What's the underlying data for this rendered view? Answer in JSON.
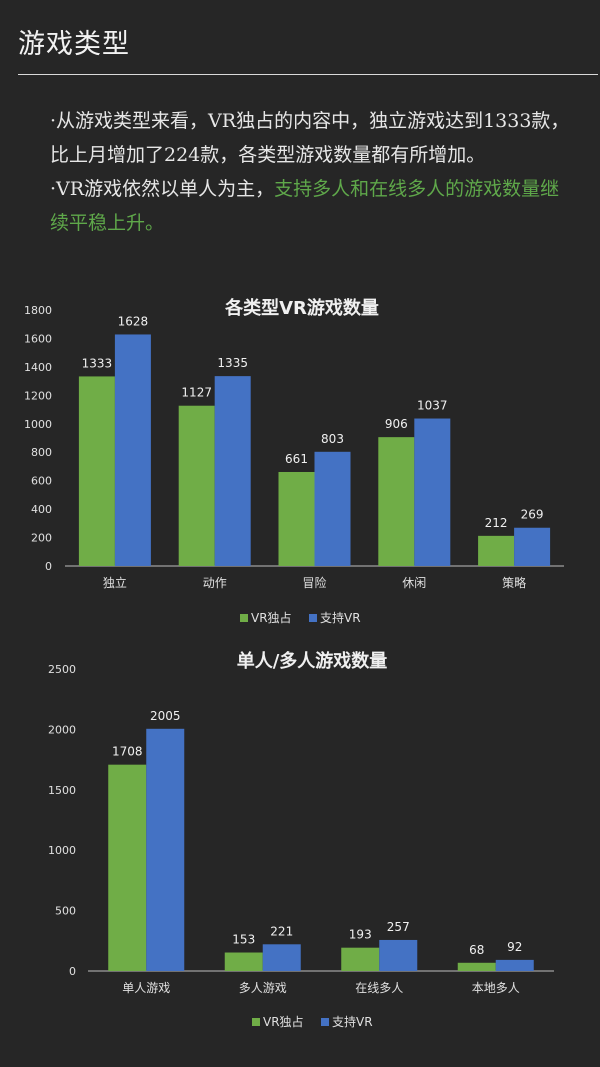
{
  "header": {
    "title": "游戏类型"
  },
  "intro": {
    "p1": "·从游戏类型来看，VR独占的内容中，独立游戏达到1333款，比上月增加了224款，各类型游戏数量都有所增加。",
    "p2_plain": "·VR游戏依然以单人为主，",
    "p2_highlight": "支持多人和在线多人的游戏数量继续平稳上升。"
  },
  "chart_data": [
    {
      "type": "bar",
      "title": "各类型VR游戏数量",
      "categories": [
        "独立",
        "动作",
        "冒险",
        "休闲",
        "策略"
      ],
      "series": [
        {
          "name": "VR独占",
          "values": [
            1333,
            1127,
            661,
            906,
            212
          ],
          "color": "#70ad47"
        },
        {
          "name": "支持VR",
          "values": [
            1628,
            1335,
            803,
            1037,
            269
          ],
          "color": "#4472c4"
        }
      ],
      "ylim": [
        0,
        1800
      ],
      "yticks": [
        0,
        200,
        400,
        600,
        800,
        1000,
        1200,
        1400,
        1600,
        1800
      ],
      "legend": "bottom",
      "grid": false
    },
    {
      "type": "bar",
      "title": "单人/多人游戏数量",
      "categories": [
        "单人游戏",
        "多人游戏",
        "在线多人",
        "本地多人"
      ],
      "series": [
        {
          "name": "VR独占",
          "values": [
            1708,
            153,
            193,
            68
          ],
          "color": "#70ad47"
        },
        {
          "name": "支持VR",
          "values": [
            2005,
            221,
            257,
            92
          ],
          "color": "#4472c4"
        }
      ],
      "ylim": [
        0,
        2500
      ],
      "yticks": [
        0,
        500,
        1000,
        1500,
        2000,
        2500
      ],
      "legend": "bottom",
      "grid": false
    }
  ]
}
